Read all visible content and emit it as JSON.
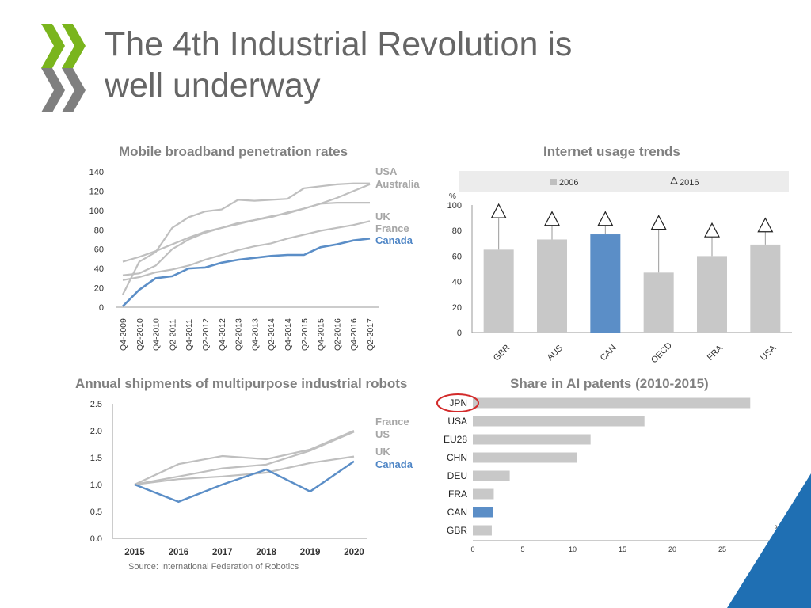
{
  "header": {
    "title_line1": "The 4th Industrial Revolution is",
    "title_line2": "well underway"
  },
  "source": "Source: International Federation of Robotics",
  "colors": {
    "grey": "#bfbfbf",
    "blue": "#5b8ec7",
    "highlight_circle": "#d32b2b",
    "brand_green": "#7ab51d",
    "brand_grey": "#7f7f7f",
    "corner_blue": "#1f6fb3"
  },
  "chart_data": [
    {
      "type": "line",
      "title": "Mobile broadband penetration rates",
      "x": [
        "Q4-2009",
        "Q2-2010",
        "Q4-2010",
        "Q2-2011",
        "Q4-2011",
        "Q2-2012",
        "Q4-2012",
        "Q2-2013",
        "Q4-2013",
        "Q2-2014",
        "Q4-2014",
        "Q2-2015",
        "Q4-2015",
        "Q2-2016",
        "Q4-2016",
        "Q2-2017"
      ],
      "ylim": [
        0,
        140
      ],
      "yticks": [
        0,
        20,
        40,
        60,
        80,
        100,
        120,
        140
      ],
      "series": [
        {
          "name": "USA",
          "color": "#bfbfbf",
          "values": [
            47,
            52,
            58,
            65,
            72,
            78,
            82,
            87,
            90,
            93,
            98,
            102,
            107,
            113,
            120,
            127
          ]
        },
        {
          "name": "Australia",
          "color": "#bfbfbf",
          "values": [
            13,
            47,
            57,
            82,
            93,
            99,
            101,
            111,
            110,
            111,
            112,
            123,
            125,
            127,
            128,
            128
          ]
        },
        {
          "name": "UK",
          "color": "#bfbfbf",
          "values": [
            33,
            35,
            43,
            60,
            70,
            77,
            82,
            86,
            90,
            94,
            97,
            102,
            107,
            108,
            108,
            108
          ]
        },
        {
          "name": "France",
          "color": "#bfbfbf",
          "values": [
            28,
            31,
            36,
            39,
            43,
            49,
            54,
            59,
            63,
            66,
            71,
            75,
            79,
            82,
            85,
            89
          ]
        },
        {
          "name": "Canada",
          "color": "#5b8ec7",
          "values": [
            1,
            18,
            30,
            32,
            40,
            41,
            46,
            49,
            51,
            53,
            54,
            54,
            62,
            65,
            69,
            71
          ]
        }
      ]
    },
    {
      "type": "bar",
      "title": "Internet usage trends",
      "unit": "%",
      "categories": [
        "GBR",
        "AUS",
        "CAN",
        "OECD",
        "FRA",
        "USA"
      ],
      "series": [
        {
          "name": "2006",
          "marker": "bar",
          "values": [
            65,
            73,
            77,
            47,
            60,
            69
          ]
        },
        {
          "name": "2016",
          "marker": "triangle",
          "values": [
            95,
            89,
            89,
            86,
            80,
            84
          ]
        }
      ],
      "highlight": "CAN",
      "ylim": [
        0,
        100
      ],
      "yticks": [
        0,
        20,
        40,
        60,
        80,
        100
      ]
    },
    {
      "type": "line",
      "title": "Annual shipments of multipurpose industrial robots",
      "x": [
        "2015",
        "2016",
        "2017",
        "2018",
        "2019",
        "2020"
      ],
      "ylim": [
        0,
        2.5
      ],
      "yticks": [
        "0.0",
        "0.5",
        "1.0",
        "1.5",
        "2.0",
        "2.5"
      ],
      "series": [
        {
          "name": "France",
          "color": "#bfbfbf",
          "values": [
            1.0,
            1.38,
            1.53,
            1.47,
            1.65,
            2.0
          ]
        },
        {
          "name": "US",
          "color": "#bfbfbf",
          "values": [
            1.0,
            1.15,
            1.3,
            1.37,
            1.63,
            1.98
          ]
        },
        {
          "name": "UK",
          "color": "#bfbfbf",
          "values": [
            1.0,
            1.1,
            1.15,
            1.22,
            1.4,
            1.52
          ]
        },
        {
          "name": "Canada",
          "color": "#5b8ec7",
          "values": [
            1.0,
            0.68,
            1.0,
            1.28,
            0.87,
            1.43
          ]
        }
      ]
    },
    {
      "type": "bar",
      "orientation": "horizontal",
      "title": "Share in AI patents (2010-2015)",
      "unit": "%",
      "categories": [
        "JPN",
        "USA",
        "EU28",
        "CHN",
        "DEU",
        "FRA",
        "CAN",
        "GBR"
      ],
      "values": [
        27.8,
        17.2,
        11.8,
        10.4,
        3.7,
        2.1,
        2.0,
        1.9
      ],
      "highlight": "CAN",
      "circled": "JPN",
      "xlim": [
        0,
        30
      ],
      "xticks": [
        0,
        5,
        10,
        15,
        20,
        25,
        30
      ]
    }
  ]
}
